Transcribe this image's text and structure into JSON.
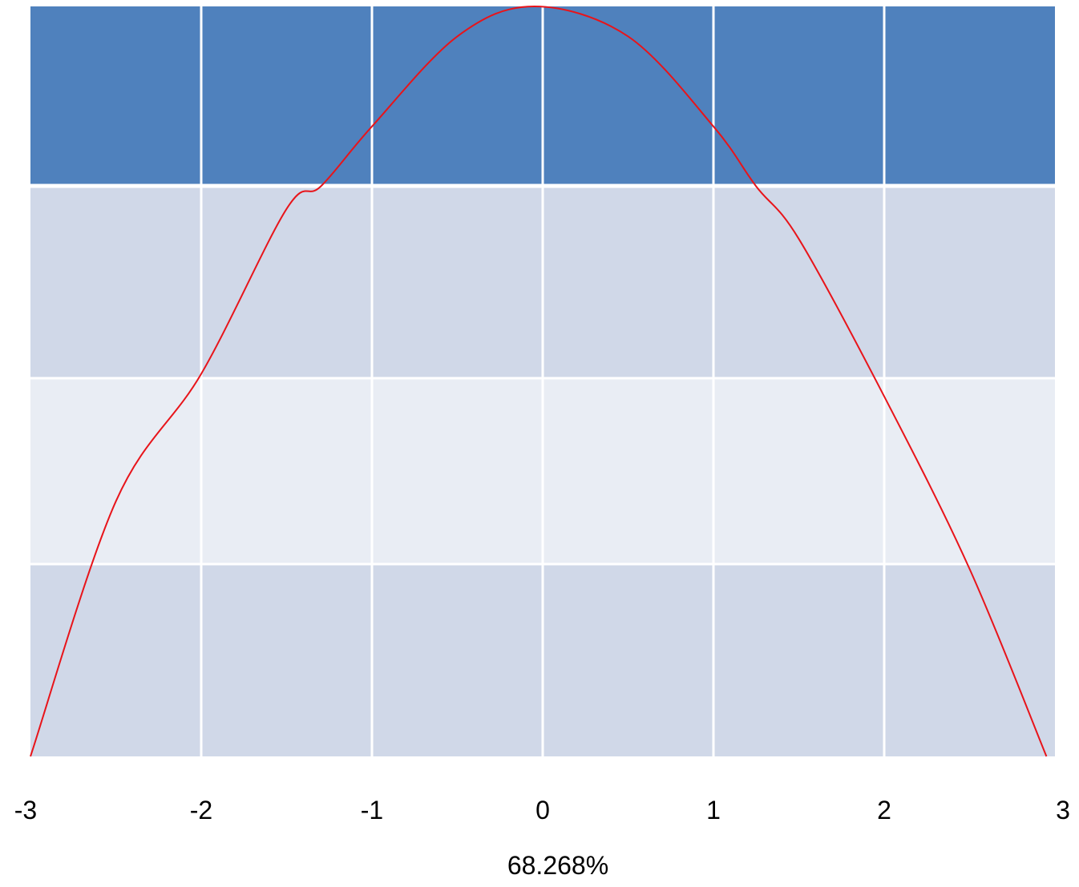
{
  "chart_data": {
    "type": "line",
    "x_ticks": [
      "-3",
      "-2",
      "-1",
      "0",
      "1",
      "2",
      "3"
    ],
    "xlim": [
      -3,
      3
    ],
    "ylim": [
      0,
      1
    ],
    "rows": 4,
    "curve": {
      "color": "#e8141a",
      "points": [
        {
          "x": -3,
          "y": 0.0
        },
        {
          "x": -2.5,
          "y": 0.34
        },
        {
          "x": -2,
          "y": 0.51
        },
        {
          "x": -1.5,
          "y": 0.73
        },
        {
          "x": -1.3,
          "y": 0.76
        },
        {
          "x": -1,
          "y": 0.84
        },
        {
          "x": -0.5,
          "y": 0.96
        },
        {
          "x": -0.05,
          "y": 1.0
        },
        {
          "x": 0.5,
          "y": 0.96
        },
        {
          "x": 1,
          "y": 0.84
        },
        {
          "x": 1.25,
          "y": 0.76
        },
        {
          "x": 1.5,
          "y": 0.69
        },
        {
          "x": 2,
          "y": 0.48
        },
        {
          "x": 2.5,
          "y": 0.25
        },
        {
          "x": 2.95,
          "y": 0.0
        }
      ]
    },
    "row_colors": [
      "#4f81bd",
      "#d0d8e8",
      "#e9edf4",
      "#d0d8e8"
    ],
    "grid_color": "#ffffff",
    "caption": "68.268%"
  }
}
